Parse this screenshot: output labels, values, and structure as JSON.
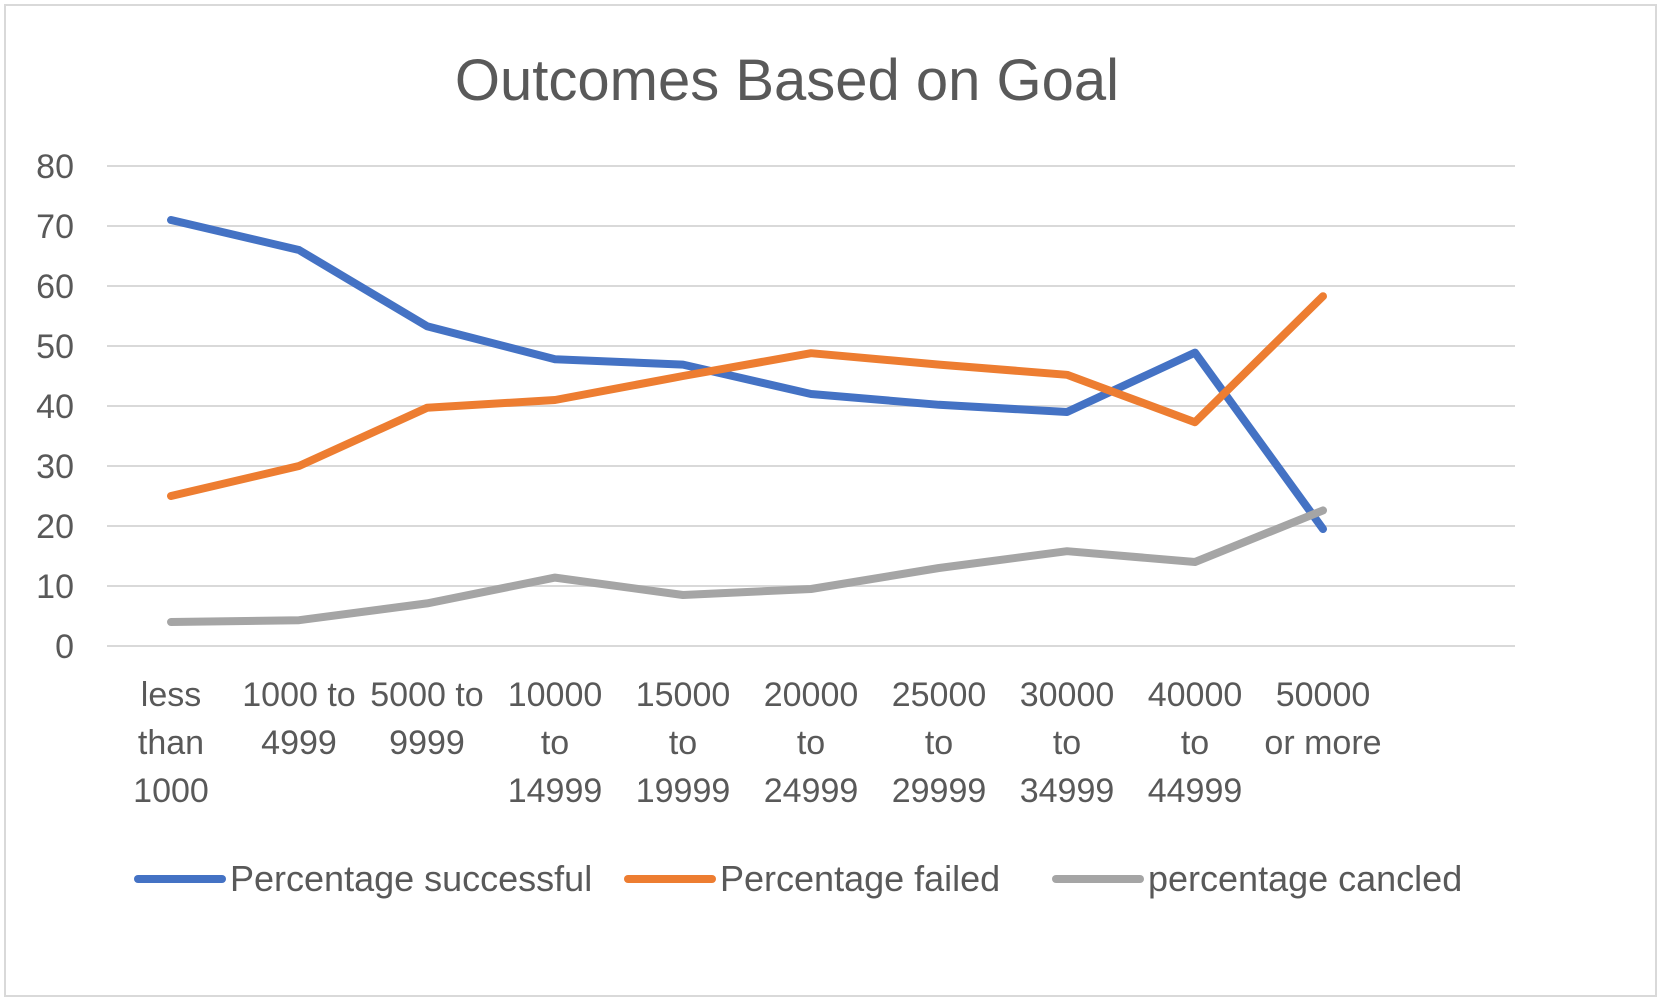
{
  "chart_data": {
    "type": "line",
    "title": "Outcomes Based on Goal",
    "xlabel": "",
    "ylabel": "",
    "ylim": [
      0,
      80
    ],
    "yticks": [
      0,
      10,
      20,
      30,
      40,
      50,
      60,
      70,
      80
    ],
    "grid": true,
    "legend_position": "bottom",
    "categories": [
      [
        "less",
        "than",
        "1000"
      ],
      [
        "1000 to",
        "4999"
      ],
      [
        "5000 to",
        "9999"
      ],
      [
        "10000",
        "to",
        "14999"
      ],
      [
        "15000",
        "to",
        "19999"
      ],
      [
        "20000",
        "to",
        "24999"
      ],
      [
        "25000",
        "to",
        "29999"
      ],
      [
        "30000",
        "to",
        "34999"
      ],
      [
        "40000",
        "to",
        "44999"
      ],
      [
        "50000",
        "or more"
      ]
    ],
    "series": [
      {
        "name": "Percentage successful",
        "color": "#4472c4",
        "values": [
          71,
          66,
          53.3,
          47.8,
          46.9,
          42,
          40.2,
          39,
          48.9,
          19.5
        ]
      },
      {
        "name": "Percentage failed",
        "color": "#ed7d31",
        "values": [
          25,
          30,
          39.7,
          41,
          45,
          48.8,
          46.9,
          45.2,
          37.3,
          58.3
        ]
      },
      {
        "name": "percentage cancled",
        "color": "#a5a5a5",
        "values": [
          4,
          4.3,
          7.1,
          11.4,
          8.5,
          9.5,
          13,
          15.8,
          14,
          22.6
        ]
      }
    ]
  }
}
